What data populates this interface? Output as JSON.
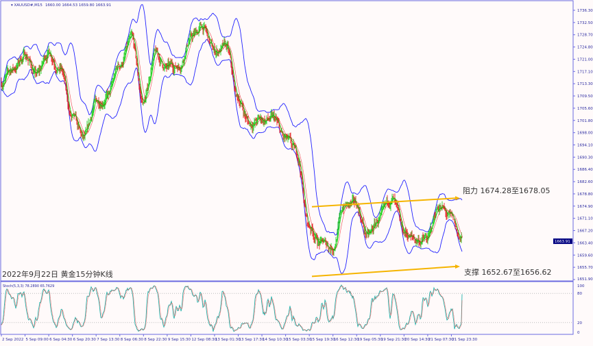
{
  "header": {
    "symbol": "XAUUSD#,M15",
    "ohlc": "1660.00 1664.53 1659.80 1663.91"
  },
  "annotations": {
    "caption": "2022年9月22日 黄金15分钟K线",
    "resistance": "阻力 1674.28至1678.05",
    "support": "支撑 1652.67至1656.62",
    "line_color": "#f5b400"
  },
  "colors": {
    "bull": "#00c800",
    "bear": "#e00000",
    "band": "#2020ff",
    "axis": "#6a6ae0",
    "stoch_main": "#20b2aa",
    "stoch_signal": "#ff3030",
    "price_tag_bg": "#000080"
  },
  "chart_data": [
    {
      "type": "candlestick",
      "timeframe": "M15",
      "current_price": "1663.91",
      "ylim": [
        1651.9,
        1736.3
      ],
      "y_ticks": [
        "1736.30",
        "1732.50",
        "1728.70",
        "1724.80",
        "1721.00",
        "1717.10",
        "1713.30",
        "1709.50",
        "1705.60",
        "1701.80",
        "1698.00",
        "1694.10",
        "1690.30",
        "1686.40",
        "1682.60",
        "1678.80",
        "1674.90",
        "1671.10",
        "1667.20",
        "1663.40",
        "1659.60",
        "1655.70",
        "1651.90"
      ],
      "x_ticks": [
        "2 Sep 2022",
        "5 Sep 09:00",
        "6 Sep 04:30",
        "6 Sep 20:30",
        "7 Sep 13:30",
        "8 Sep 06:30",
        "8 Sep 22:30",
        "9 Sep 15:30",
        "12 Sep 08:30",
        "13 Sep 01:30",
        "13 Sep 17:30",
        "14 Sep 10:30",
        "15 Sep 03:30",
        "15 Sep 19:30",
        "16 Sep 12:30",
        "19 Sep 05:30",
        "19 Sep 21:30",
        "20 Sep 14:30",
        "21 Sep 07:30",
        "21 Sep 23:30"
      ],
      "approx_close_every_8h": [
        1713.75,
        1718.04,
        1722.34,
        1715.9,
        1723.41,
        1718.04,
        1701.94,
        1695.49,
        1707.3,
        1709.45,
        1719.12,
        1726.64,
        1707.3,
        1722.34,
        1718.04,
        1719.12,
        1727.71,
        1730.93,
        1723.41,
        1724.49,
        1708.38,
        1700.86,
        1701.94,
        1701.94,
        1695.49,
        1691.2,
        1668.65,
        1663.28,
        1662.2,
        1675.09,
        1675.09,
        1665.42,
        1670.8,
        1677.24,
        1666.5,
        1664.35,
        1664.35,
        1675.09,
        1670.8,
        1663.91
      ],
      "overlays": [
        "bollinger-bands",
        "moving-averages"
      ],
      "levels": [
        {
          "name": "resistance",
          "from": 1674.28,
          "to": 1678.05
        },
        {
          "name": "support",
          "from": 1652.67,
          "to": 1656.62
        }
      ]
    },
    {
      "type": "line",
      "label": "Stoch(5,3,3) 78.2890 65.7629",
      "ylim": [
        0,
        100
      ],
      "y_ticks": [
        "100",
        "80",
        "20",
        "0"
      ],
      "levels": [
        80,
        20
      ],
      "last_values": {
        "main": 78.289,
        "signal": 65.7629
      }
    }
  ]
}
